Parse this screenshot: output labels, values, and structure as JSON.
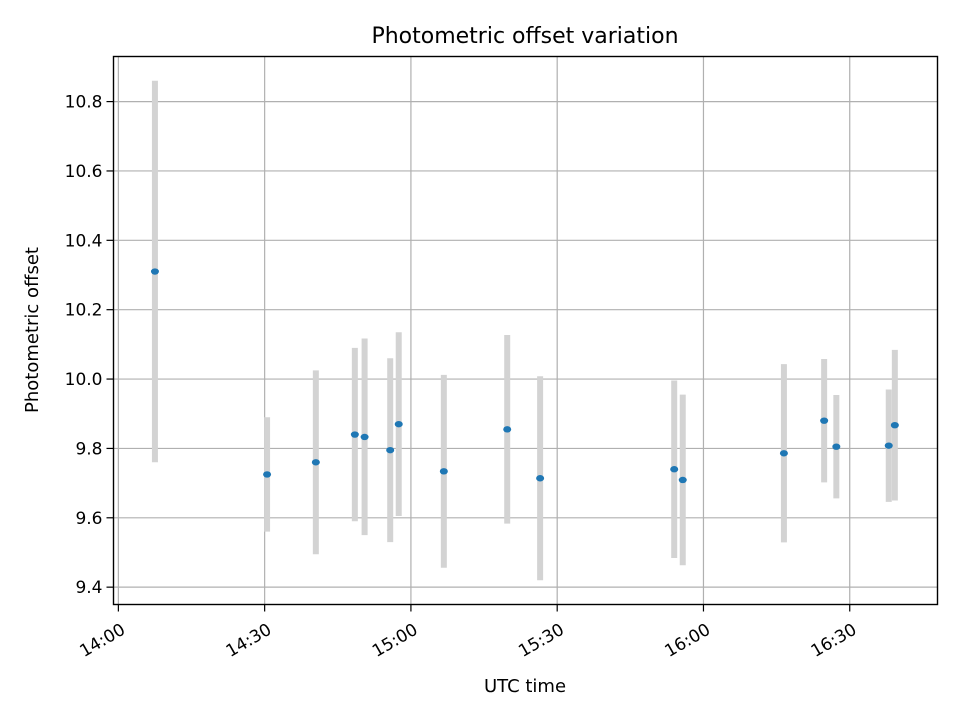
{
  "chart_data": {
    "type": "scatter",
    "title": "Photometric offset variation",
    "xlabel": "UTC time",
    "ylabel": "Photometric offset",
    "x_axis_kind": "time",
    "xlim": [
      "13:59",
      "16:48"
    ],
    "ylim": [
      9.35,
      10.93
    ],
    "x_ticks": [
      "14:00",
      "14:30",
      "15:00",
      "15:30",
      "16:00",
      "16:30"
    ],
    "y_ticks": [
      9.4,
      9.6,
      9.8,
      10.0,
      10.2,
      10.4,
      10.6,
      10.8
    ],
    "grid": true,
    "marker_color": "#1f77b4",
    "errorbar_color": "#d3d3d3",
    "points": [
      {
        "x": "14:07:30",
        "y": 10.31,
        "low": 9.76,
        "high": 10.86
      },
      {
        "x": "14:30:30",
        "y": 9.725,
        "low": 9.56,
        "high": 9.89
      },
      {
        "x": "14:40:30",
        "y": 9.76,
        "low": 9.495,
        "high": 10.025
      },
      {
        "x": "14:48:30",
        "y": 9.84,
        "low": 9.59,
        "high": 10.09
      },
      {
        "x": "14:50:30",
        "y": 9.833,
        "low": 9.55,
        "high": 10.117
      },
      {
        "x": "14:55:45",
        "y": 9.795,
        "low": 9.53,
        "high": 10.06
      },
      {
        "x": "14:57:30",
        "y": 9.87,
        "low": 9.605,
        "high": 10.135
      },
      {
        "x": "15:06:45",
        "y": 9.734,
        "low": 9.456,
        "high": 10.012
      },
      {
        "x": "15:19:45",
        "y": 9.855,
        "low": 9.583,
        "high": 10.127
      },
      {
        "x": "15:26:30",
        "y": 9.714,
        "low": 9.42,
        "high": 10.008
      },
      {
        "x": "15:54:00",
        "y": 9.74,
        "low": 9.484,
        "high": 9.996
      },
      {
        "x": "15:55:45",
        "y": 9.709,
        "low": 9.463,
        "high": 9.955
      },
      {
        "x": "16:16:30",
        "y": 9.786,
        "low": 9.529,
        "high": 10.043
      },
      {
        "x": "16:24:45",
        "y": 9.88,
        "low": 9.702,
        "high": 10.058
      },
      {
        "x": "16:27:15",
        "y": 9.805,
        "low": 9.656,
        "high": 9.954
      },
      {
        "x": "16:38:00",
        "y": 9.808,
        "low": 9.646,
        "high": 9.97
      },
      {
        "x": "16:39:15",
        "y": 9.867,
        "low": 9.65,
        "high": 10.084
      }
    ]
  }
}
